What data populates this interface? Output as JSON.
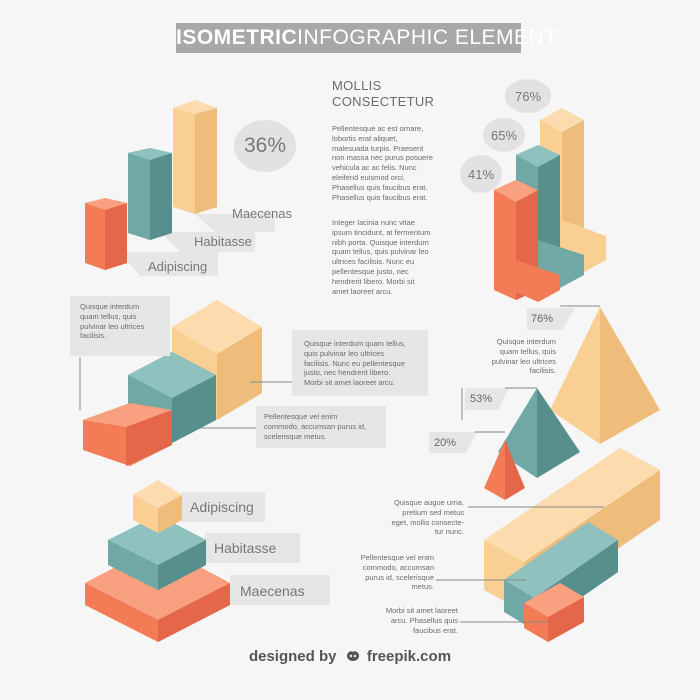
{
  "title": {
    "bold": "ISOMETRIC",
    "light": "INFOGRAPHIC ELEMENT"
  },
  "section_bars": {
    "percent": "36%",
    "labels": [
      "Maecenas",
      "Habitasse",
      "Adipiscing"
    ]
  },
  "center_text": {
    "heading_line1": "MOLLIS",
    "heading_line2": "CONSECTETUR",
    "para1": [
      "Pellentesque ac est ornare,",
      "lobortis erat aliquet,",
      "malesuada turpis. Praesent",
      "non massa nec purus posuere",
      "vehicula ac ac felis. Nunc",
      "eleifend euismod orci.",
      "Phasellus quis faucibus erat.",
      "Phasellus quis faucibus erat."
    ],
    "para2": [
      "Integer lacinia nunc vitae",
      "ipsum tincidunt, at fermentum",
      "nibh porta. Quisque interdum",
      "quam tellus, quis pulvinar leo",
      "ultrices facilisis. Nunc eu",
      "pellentesque justo, nec",
      "hendrerit libero. Morbi sit",
      "amet laoreet arcu."
    ]
  },
  "section_steps": {
    "percents": [
      "76%",
      "65%",
      "41%"
    ]
  },
  "section_prisms": {
    "text_topleft": [
      "Quisque interdum",
      "quam tellus, quis",
      "pulvinar leo ultrices",
      "facilisis."
    ],
    "text_right": [
      "Quisque interdum quam tellus,",
      "quis pulvinar leo ultrices",
      "facilisis. Nunc eu pellentesque",
      "justo, nec hendrerit libero.",
      "Morbi sit amet laoreet arcu."
    ],
    "text_bottom": [
      "Pellentesque vel enim",
      "commodo, accumsan purus id,",
      "scelerisque metus."
    ]
  },
  "section_pyramids": {
    "percents": [
      "76%",
      "53%",
      "20%"
    ],
    "text": [
      "Quisque interdum",
      "quam tellus, quis",
      "pulvinar leo ultrices",
      "facilisis."
    ]
  },
  "section_stack": {
    "labels": [
      "Adipiscing",
      "Habitasse",
      "Maecenas"
    ]
  },
  "section_blocks": {
    "texts": [
      [
        "Quisque augue urna,",
        "pretium sed metus",
        "eget, mollis consecte-",
        "tur nunc."
      ],
      [
        "Pellentesque vel enim",
        "commodo, accumsan",
        "purus id, scelerisque",
        "metus."
      ],
      [
        "Morbi sit amet laoreet",
        "arcu. Phasellus quis",
        "faucibus erat."
      ]
    ]
  },
  "footer": {
    "designed": "designed by",
    "brand": "freepik.com"
  },
  "colors": {
    "orange": "#f37b56",
    "teal": "#6fa8a5",
    "peach": "#f9cf94",
    "grey_box": "#e6e6e6",
    "banner": "#a8a8a8"
  },
  "icons": [
    "freepik-logo-icon"
  ]
}
